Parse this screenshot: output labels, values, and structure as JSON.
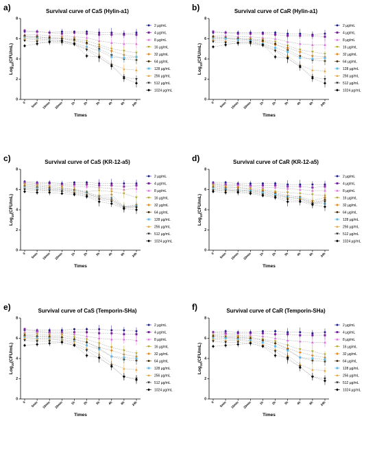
{
  "colors": {
    "2 µg/mL": "#1a1a8c",
    "4 µg/mL": "#7a1fa2",
    "8 µg/mL": "#e066e0",
    "16 µg/mL": "#b7a825",
    "32 µg/mL": "#e58a1c",
    "64 µg/mL": "#4a2b00",
    "128 µg/mL": "#5fb8e8",
    "256 µg/mL": "#e6a53a",
    "512 µg/mL": "#222222",
    "1024 µg/mL": "#000000"
  },
  "chart_data": [
    {
      "panel": "a)",
      "type": "line",
      "title": "Survival curve of CaS (Hylin-a1)",
      "xlabel": "Times",
      "ylabel": "Log10(CFU/mL)",
      "ylim": [
        0,
        8
      ],
      "yticks": [
        0,
        2,
        4,
        6,
        8
      ],
      "categories": [
        "0",
        "5min",
        "15min",
        "20min",
        "1h",
        "2h",
        "3h",
        "4h",
        "6h",
        "24h"
      ],
      "legend": "right",
      "series": [
        {
          "name": "2 µg/mL",
          "values": [
            6.7,
            6.7,
            6.6,
            6.7,
            6.7,
            6.7,
            6.6,
            6.6,
            6.5,
            6.6
          ]
        },
        {
          "name": "4 µg/mL",
          "values": [
            6.8,
            6.7,
            6.6,
            6.5,
            6.6,
            6.5,
            6.4,
            6.4,
            6.4,
            6.4
          ]
        },
        {
          "name": "8 µg/mL",
          "values": [
            6.4,
            6.4,
            6.3,
            6.3,
            6.2,
            6.1,
            5.8,
            5.6,
            5.5,
            5.5
          ]
        },
        {
          "name": "16 µg/mL",
          "values": [
            6.2,
            6.2,
            6.1,
            6.1,
            6.0,
            5.8,
            5.4,
            5.0,
            4.8,
            4.6
          ]
        },
        {
          "name": "32 µg/mL",
          "values": [
            6.2,
            6.1,
            6.0,
            6.0,
            5.8,
            5.5,
            5.2,
            4.8,
            4.4,
            4.2
          ]
        },
        {
          "name": "64 µg/mL",
          "values": [
            6.3,
            6.2,
            6.1,
            6.0,
            5.9,
            5.6,
            5.0,
            4.4,
            4.0,
            3.9
          ]
        },
        {
          "name": "128 µg/mL",
          "values": [
            6.1,
            6.0,
            5.9,
            5.8,
            5.6,
            5.2,
            4.8,
            4.2,
            4.1,
            4.2
          ]
        },
        {
          "name": "256 µg/mL",
          "values": [
            6.0,
            5.9,
            5.8,
            5.7,
            5.5,
            5.0,
            4.4,
            3.5,
            3.0,
            2.9
          ]
        },
        {
          "name": "512 µg/mL",
          "values": [
            5.8,
            5.7,
            5.6,
            5.6,
            5.4,
            4.9,
            4.1,
            3.4,
            2.2,
            2.0
          ]
        },
        {
          "name": "1024 µg/mL",
          "values": [
            5.3,
            5.5,
            5.7,
            5.8,
            5.5,
            4.3,
            4.2,
            3.3,
            2.1,
            1.6
          ]
        }
      ]
    },
    {
      "panel": "b)",
      "type": "line",
      "title": "Survival curve of CaR (Hylin-a1)",
      "xlabel": "Times",
      "ylabel": "Log10(CFU/mL)",
      "ylim": [
        0,
        8
      ],
      "yticks": [
        0,
        2,
        4,
        6,
        8
      ],
      "categories": [
        "0",
        "5min",
        "15min",
        "20min",
        "1h",
        "2h",
        "3h",
        "4h",
        "6h",
        "24h"
      ],
      "legend": "right",
      "series": [
        {
          "name": "2 µg/mL",
          "values": [
            6.6,
            6.6,
            6.6,
            6.6,
            6.6,
            6.6,
            6.5,
            6.5,
            6.4,
            6.5
          ]
        },
        {
          "name": "4 µg/mL",
          "values": [
            6.7,
            6.6,
            6.5,
            6.5,
            6.5,
            6.4,
            6.3,
            6.3,
            6.3,
            6.2
          ]
        },
        {
          "name": "8 µg/mL",
          "values": [
            6.3,
            6.3,
            6.2,
            6.2,
            6.1,
            6.0,
            5.7,
            5.5,
            5.4,
            5.4
          ]
        },
        {
          "name": "16 µg/mL",
          "values": [
            6.2,
            6.1,
            6.0,
            6.0,
            5.9,
            5.7,
            5.3,
            4.9,
            4.7,
            4.5
          ]
        },
        {
          "name": "32 µg/mL",
          "values": [
            6.1,
            6.0,
            6.0,
            5.9,
            5.7,
            5.4,
            5.1,
            4.7,
            4.3,
            4.2
          ]
        },
        {
          "name": "64 µg/mL",
          "values": [
            6.2,
            6.1,
            6.0,
            5.9,
            5.8,
            5.5,
            4.9,
            4.3,
            3.9,
            3.8
          ]
        },
        {
          "name": "128 µg/mL",
          "values": [
            6.0,
            6.0,
            5.9,
            5.8,
            5.5,
            5.1,
            4.7,
            4.1,
            4.0,
            4.1
          ]
        },
        {
          "name": "256 µg/mL",
          "values": [
            5.9,
            5.8,
            5.7,
            5.6,
            5.4,
            4.9,
            4.3,
            3.4,
            2.9,
            2.8
          ]
        },
        {
          "name": "512 µg/mL",
          "values": [
            5.7,
            5.6,
            5.5,
            5.5,
            5.3,
            4.8,
            4.0,
            3.3,
            2.2,
            2.0
          ]
        },
        {
          "name": "1024 µg/mL",
          "values": [
            5.2,
            5.4,
            5.6,
            5.7,
            5.4,
            4.2,
            4.1,
            3.2,
            2.1,
            1.6
          ]
        }
      ]
    },
    {
      "panel": "c)",
      "type": "line",
      "title": "Survival curve of CaS (KR-12-a5)",
      "xlabel": "Times",
      "ylabel": "Log10(CFU/mL)",
      "ylim": [
        0,
        8
      ],
      "yticks": [
        0,
        2,
        4,
        6,
        8
      ],
      "categories": [
        "0",
        "5min",
        "15min",
        "20min",
        "1h",
        "2h",
        "3h",
        "4h",
        "6h",
        "24h"
      ],
      "legend": "right",
      "series": [
        {
          "name": "2 µg/mL",
          "values": [
            6.8,
            6.7,
            6.7,
            6.6,
            6.7,
            6.7,
            6.6,
            6.6,
            6.6,
            6.6
          ]
        },
        {
          "name": "4 µg/mL",
          "values": [
            6.7,
            6.6,
            6.6,
            6.5,
            6.5,
            6.5,
            6.4,
            6.4,
            6.3,
            6.4
          ]
        },
        {
          "name": "8 µg/mL",
          "values": [
            6.6,
            6.5,
            6.4,
            6.4,
            6.3,
            6.3,
            6.2,
            6.1,
            6.0,
            6.1
          ]
        },
        {
          "name": "16 µg/mL",
          "values": [
            6.5,
            6.4,
            6.3,
            6.2,
            6.0,
            5.8,
            5.9,
            5.8,
            5.6,
            5.2
          ]
        },
        {
          "name": "32 µg/mL",
          "values": [
            6.4,
            6.3,
            6.2,
            6.1,
            6.0,
            5.7,
            5.4,
            5.5,
            4.3,
            4.5
          ]
        },
        {
          "name": "64 µg/mL",
          "values": [
            6.3,
            6.2,
            6.1,
            6.0,
            5.9,
            5.7,
            5.1,
            5.0,
            4.2,
            4.3
          ]
        },
        {
          "name": "128 µg/mL",
          "values": [
            6.2,
            6.1,
            6.0,
            6.0,
            5.8,
            5.6,
            5.3,
            5.2,
            4.3,
            4.4
          ]
        },
        {
          "name": "256 µg/mL",
          "values": [
            6.1,
            6.0,
            5.9,
            5.9,
            5.7,
            5.5,
            5.2,
            5.0,
            4.3,
            4.3
          ]
        },
        {
          "name": "512 µg/mL",
          "values": [
            6.0,
            5.9,
            5.9,
            5.8,
            5.6,
            5.4,
            5.0,
            4.8,
            4.2,
            4.2
          ]
        },
        {
          "name": "1024 µg/mL",
          "values": [
            5.8,
            5.7,
            5.7,
            5.6,
            5.5,
            5.3,
            4.8,
            4.6,
            4.1,
            4.0
          ]
        }
      ]
    },
    {
      "panel": "d)",
      "type": "line",
      "title": "Survival curve of CaR (KR-12-a5)",
      "xlabel": "Times",
      "ylabel": "Log10(CFU/mL)",
      "ylim": [
        0,
        8
      ],
      "yticks": [
        0,
        2,
        4,
        6,
        8
      ],
      "categories": [
        "0",
        "5min",
        "15min",
        "20min",
        "1h",
        "2h",
        "3h",
        "4h",
        "6h",
        "24h"
      ],
      "legend": "right",
      "series": [
        {
          "name": "2 µg/mL",
          "values": [
            6.7,
            6.7,
            6.6,
            6.6,
            6.6,
            6.6,
            6.5,
            6.5,
            6.5,
            6.5
          ]
        },
        {
          "name": "4 µg/mL",
          "values": [
            6.6,
            6.5,
            6.5,
            6.4,
            6.4,
            6.4,
            6.3,
            6.3,
            6.2,
            6.3
          ]
        },
        {
          "name": "8 µg/mL",
          "values": [
            6.5,
            6.4,
            6.4,
            6.3,
            6.2,
            6.2,
            6.1,
            6.0,
            5.9,
            5.9
          ]
        },
        {
          "name": "16 µg/mL",
          "values": [
            6.4,
            6.3,
            6.2,
            6.1,
            6.0,
            5.8,
            5.7,
            5.6,
            5.5,
            5.4
          ]
        },
        {
          "name": "32 µg/mL",
          "values": [
            6.3,
            6.2,
            6.2,
            6.0,
            5.9,
            5.7,
            5.4,
            5.3,
            4.9,
            5.2
          ]
        },
        {
          "name": "64 µg/mL",
          "values": [
            6.2,
            6.1,
            6.0,
            5.9,
            5.8,
            5.6,
            5.2,
            5.1,
            4.6,
            5.0
          ]
        },
        {
          "name": "128 µg/mL",
          "values": [
            6.1,
            6.0,
            5.9,
            5.9,
            5.7,
            5.5,
            5.3,
            5.2,
            4.7,
            4.6
          ]
        },
        {
          "name": "256 µg/mL",
          "values": [
            6.0,
            5.9,
            5.9,
            5.8,
            5.6,
            5.4,
            5.2,
            5.1,
            4.8,
            4.9
          ]
        },
        {
          "name": "512 µg/mL",
          "values": [
            5.9,
            5.9,
            5.8,
            5.7,
            5.5,
            5.3,
            5.0,
            4.9,
            4.6,
            4.8
          ]
        },
        {
          "name": "1024 µg/mL",
          "values": [
            5.8,
            5.7,
            5.7,
            5.6,
            5.4,
            5.2,
            4.8,
            4.8,
            4.5,
            4.3
          ]
        }
      ]
    },
    {
      "panel": "e)",
      "type": "line",
      "title": "Survival curve of CaS (Temporin-SHa)",
      "xlabel": "Times",
      "ylabel": "Log10(CFU/mL)",
      "ylim": [
        0,
        8
      ],
      "yticks": [
        0,
        2,
        4,
        6,
        8
      ],
      "categories": [
        "0",
        "5min",
        "15min",
        "20min",
        "1h",
        "2h",
        "3h",
        "4h",
        "6h",
        "24h"
      ],
      "legend": "right",
      "series": [
        {
          "name": "2 µg/mL",
          "values": [
            6.8,
            6.8,
            6.8,
            6.8,
            6.9,
            6.9,
            6.9,
            6.8,
            6.8,
            6.7
          ]
        },
        {
          "name": "4 µg/mL",
          "values": [
            6.9,
            6.7,
            6.6,
            6.6,
            6.6,
            6.6,
            6.5,
            6.5,
            6.4,
            6.4
          ]
        },
        {
          "name": "8 µg/mL",
          "values": [
            6.6,
            6.6,
            6.5,
            6.5,
            6.4,
            6.2,
            6.0,
            5.9,
            5.9,
            5.8
          ]
        },
        {
          "name": "16 µg/mL",
          "values": [
            6.4,
            6.4,
            6.3,
            6.3,
            6.1,
            5.9,
            5.5,
            5.1,
            4.8,
            4.5
          ]
        },
        {
          "name": "32 µg/mL",
          "values": [
            6.2,
            6.2,
            6.2,
            6.1,
            5.9,
            5.6,
            5.1,
            4.8,
            4.4,
            4.2
          ]
        },
        {
          "name": "64 µg/mL",
          "values": [
            6.3,
            6.2,
            6.1,
            6.1,
            5.9,
            5.6,
            5.0,
            4.2,
            3.9,
            3.8
          ]
        },
        {
          "name": "128 µg/mL",
          "values": [
            6.1,
            6.0,
            6.0,
            5.9,
            5.7,
            5.3,
            4.9,
            4.2,
            4.1,
            4.0
          ]
        },
        {
          "name": "256 µg/mL",
          "values": [
            6.0,
            5.9,
            5.9,
            5.8,
            5.5,
            5.0,
            4.4,
            3.5,
            3.0,
            2.9
          ]
        },
        {
          "name": "512 µg/mL",
          "values": [
            5.8,
            5.7,
            5.7,
            5.6,
            5.3,
            4.8,
            4.0,
            3.3,
            2.2,
            2.0
          ]
        },
        {
          "name": "1024 µg/mL",
          "values": [
            5.3,
            5.4,
            5.5,
            5.6,
            5.3,
            4.3,
            4.1,
            3.2,
            2.2,
            1.9
          ]
        }
      ]
    },
    {
      "panel": "f)",
      "type": "line",
      "title": "Survival curve of CaR (Temporin-SHa)",
      "xlabel": "Times",
      "ylabel": "Log10(CFU/mL)",
      "ylim": [
        0,
        8
      ],
      "yticks": [
        0,
        2,
        4,
        6,
        8
      ],
      "categories": [
        "0",
        "5min",
        "15min",
        "20min",
        "1h",
        "2h",
        "3h",
        "4h",
        "6h",
        "24h"
      ],
      "legend": "right",
      "series": [
        {
          "name": "2 µg/mL",
          "values": [
            6.6,
            6.7,
            6.6,
            6.6,
            6.7,
            6.7,
            6.6,
            6.6,
            6.5,
            6.6
          ]
        },
        {
          "name": "4 µg/mL",
          "values": [
            6.6,
            6.5,
            6.5,
            6.5,
            6.5,
            6.4,
            6.4,
            6.3,
            6.3,
            6.3
          ]
        },
        {
          "name": "8 µg/mL",
          "values": [
            6.4,
            6.4,
            6.3,
            6.3,
            6.2,
            6.0,
            5.8,
            5.7,
            5.6,
            5.6
          ]
        },
        {
          "name": "16 µg/mL",
          "values": [
            6.3,
            6.2,
            6.2,
            6.1,
            5.9,
            5.7,
            5.3,
            4.9,
            4.7,
            4.4
          ]
        },
        {
          "name": "32 µg/mL",
          "values": [
            6.2,
            6.1,
            6.1,
            6.0,
            5.8,
            5.5,
            5.0,
            4.6,
            4.3,
            4.1
          ]
        },
        {
          "name": "64 µg/mL",
          "values": [
            6.2,
            6.1,
            6.0,
            6.0,
            5.8,
            5.5,
            4.9,
            4.1,
            3.8,
            3.7
          ]
        },
        {
          "name": "128 µg/mL",
          "values": [
            6.0,
            6.0,
            5.9,
            5.8,
            5.6,
            5.2,
            4.8,
            4.1,
            4.0,
            3.9
          ]
        },
        {
          "name": "256 µg/mL",
          "values": [
            5.9,
            5.8,
            5.8,
            5.7,
            5.4,
            4.9,
            4.3,
            3.4,
            2.9,
            2.8
          ]
        },
        {
          "name": "512 µg/mL",
          "values": [
            5.7,
            5.6,
            5.6,
            5.5,
            5.2,
            4.7,
            3.9,
            3.2,
            2.2,
            2.0
          ]
        },
        {
          "name": "1024 µg/mL",
          "values": [
            5.2,
            5.3,
            5.4,
            5.5,
            5.2,
            4.3,
            4.1,
            3.1,
            2.2,
            1.8
          ]
        }
      ]
    }
  ]
}
